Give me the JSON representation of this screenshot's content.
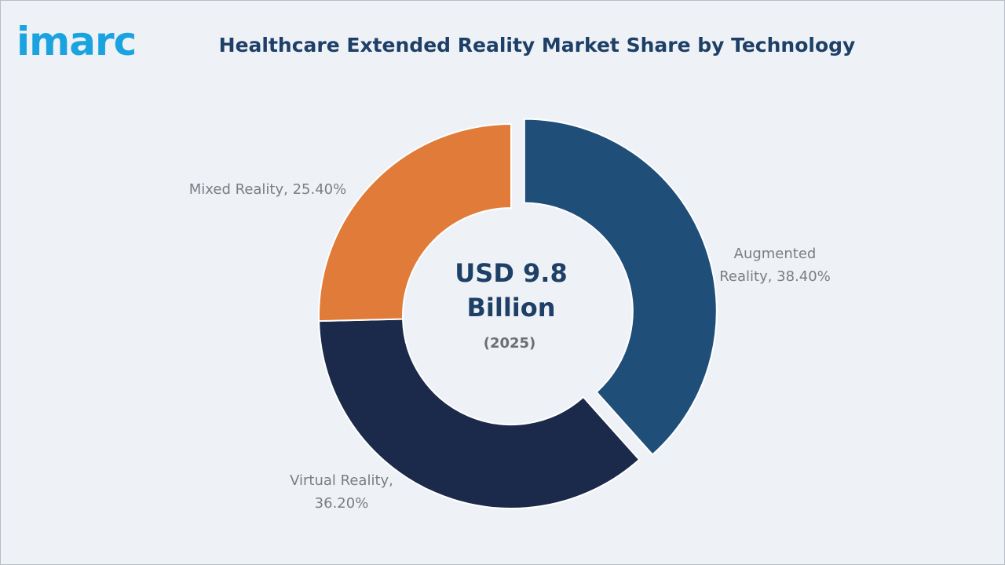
{
  "logo": {
    "text": "imarc"
  },
  "chart_data": {
    "type": "pie",
    "title": "Healthcare Extended Reality Market Share by Technology",
    "center": {
      "line1": "USD 9.8",
      "line2": "Billion",
      "year": "(2025)"
    },
    "slices": [
      {
        "name": "Augmented Reality",
        "value": 38.4,
        "label_lines": [
          "Augmented",
          "Reality, 38.40%"
        ],
        "color": "#1f4e79",
        "exploded": true
      },
      {
        "name": "Virtual Reality",
        "value": 36.2,
        "label_lines": [
          "Virtual Reality,",
          "36.20%"
        ],
        "color": "#1b2a4a",
        "exploded": false
      },
      {
        "name": "Mixed Reality",
        "value": 25.4,
        "label_lines": [
          "Mixed Reality, 25.40%"
        ],
        "color": "#e07b39",
        "exploded": false
      }
    ]
  }
}
